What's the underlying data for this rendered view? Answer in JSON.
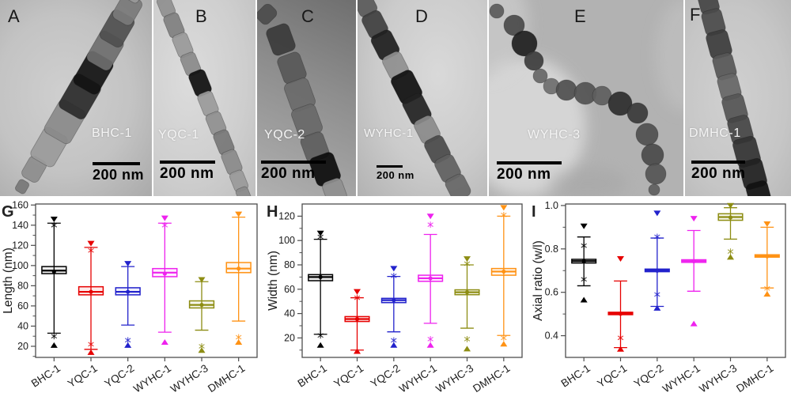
{
  "figure": {
    "tem_panels": [
      {
        "id": "A",
        "label": "A",
        "sample": "BHC-1",
        "scale_text": "200 nm"
      },
      {
        "id": "B",
        "label": "B",
        "sample": "YQC-1",
        "scale_text": "200 nm"
      },
      {
        "id": "C",
        "label": "C",
        "sample": "YQC-2",
        "scale_text": "200 nm"
      },
      {
        "id": "D",
        "label": "D",
        "sample": "WYHC-1",
        "scale_text": "200 nm"
      },
      {
        "id": "E",
        "label": "E",
        "sample": "WYHC-3",
        "scale_text": "200 nm"
      },
      {
        "id": "F",
        "label": "F",
        "sample": "DMHC-1",
        "scale_text": "200 nm"
      }
    ]
  },
  "chart_data": [
    {
      "type": "box",
      "panel": "G",
      "ylabel": "Length (nm)",
      "ylim": [
        9,
        161
      ],
      "yticks": [
        20,
        40,
        60,
        80,
        100,
        120,
        140,
        160
      ],
      "ytick_labels": [
        "20",
        "40",
        "60",
        "80",
        "100",
        "120",
        "140",
        "160"
      ],
      "categories": [
        "BHC-1",
        "YQC-1",
        "YQC-2",
        "WYHC-1",
        "WYHC-3",
        "DMHC-1"
      ],
      "series": [
        {
          "name": "BHC-1",
          "color": "#000000",
          "q1": 92,
          "median": 95,
          "q3": 99,
          "mean": 94,
          "whisker_low": 33,
          "whisker_high": 142,
          "max": 146,
          "p99": 140,
          "p1": 30,
          "min": 21
        },
        {
          "name": "YQC-1",
          "color": "#e60000",
          "q1": 71,
          "median": 74,
          "q3": 79,
          "mean": 74,
          "whisker_low": 17,
          "whisker_high": 118,
          "max": 122,
          "p99": 115,
          "p1": 22,
          "min": 14
        },
        {
          "name": "YQC-2",
          "color": "#2222cc",
          "q1": 71,
          "median": 74,
          "q3": 78,
          "mean": 74,
          "whisker_low": 41,
          "whisker_high": 99,
          "max": 102,
          "p99": null,
          "p1": 26,
          "min": 21
        },
        {
          "name": "WYHC-1",
          "color": "#ee22ee",
          "q1": 89,
          "median": 93,
          "q3": 97,
          "mean": 92,
          "whisker_low": 34,
          "whisker_high": 142,
          "max": 147,
          "p99": 140,
          "p1": null,
          "min": 24
        },
        {
          "name": "WYHC-3",
          "color": "#8d8d13",
          "q1": 58,
          "median": 61,
          "q3": 65,
          "mean": 61,
          "whisker_low": 36,
          "whisker_high": 84,
          "max": 86,
          "p99": null,
          "p1": 20,
          "min": 16
        },
        {
          "name": "DMHC-1",
          "color": "#ff9214",
          "q1": 93,
          "median": 97,
          "q3": 103,
          "mean": 97,
          "whisker_low": 45,
          "whisker_high": 148,
          "max": 151,
          "p99": null,
          "p1": 29,
          "min": 24
        }
      ]
    },
    {
      "type": "box",
      "panel": "H",
      "ylabel": "Width (nm)",
      "ylim": [
        4,
        130
      ],
      "yticks": [
        20,
        40,
        60,
        80,
        100,
        120
      ],
      "ytick_labels": [
        "20",
        "40",
        "60",
        "80",
        "100",
        "120"
      ],
      "categories": [
        "BHC-1",
        "YQC-1",
        "YQC-2",
        "WYHC-1",
        "WYHC-3",
        "DMHC-1"
      ],
      "series": [
        {
          "name": "BHC-1",
          "color": "#000000",
          "q1": 67,
          "median": 70,
          "q3": 72,
          "mean": 70,
          "whisker_low": 23,
          "whisker_high": 101,
          "max": 106,
          "p99": 103,
          "p1": 22,
          "min": 14
        },
        {
          "name": "YQC-1",
          "color": "#e60000",
          "q1": 33.5,
          "median": 35.5,
          "q3": 37.5,
          "mean": 35.5,
          "whisker_low": 10,
          "whisker_high": 53,
          "max": 58,
          "p99": 53,
          "p1": null,
          "min": 9
        },
        {
          "name": "YQC-2",
          "color": "#2222cc",
          "q1": 49,
          "median": 51,
          "q3": 52.5,
          "mean": 51,
          "whisker_low": 25,
          "whisker_high": 70.5,
          "max": 77,
          "p99": 71,
          "p1": 18,
          "min": 14
        },
        {
          "name": "WYHC-1",
          "color": "#ee22ee",
          "q1": 66.5,
          "median": 69,
          "q3": 71.5,
          "mean": 69,
          "whisker_low": 32,
          "whisker_high": 105,
          "max": 120,
          "p99": 113,
          "p1": 19,
          "min": 14
        },
        {
          "name": "WYHC-3",
          "color": "#8d8d13",
          "q1": 55.5,
          "median": 57.5,
          "q3": 59.5,
          "mean": 57.5,
          "whisker_low": 28,
          "whisker_high": 80,
          "max": 85,
          "p99": 81,
          "p1": 19,
          "min": 11
        },
        {
          "name": "DMHC-1",
          "color": "#ff9214",
          "q1": 71.5,
          "median": 74.5,
          "q3": 77,
          "mean": 74.5,
          "whisker_low": 22,
          "whisker_high": 120,
          "max": 127,
          "p99": 121,
          "p1": 20,
          "min": 15
        }
      ]
    },
    {
      "type": "box",
      "panel": "I",
      "ylabel": "Axial ratio (w/l)",
      "ylim": [
        0.3,
        1.007
      ],
      "yticks": [
        0.4,
        0.6,
        0.8,
        1.0
      ],
      "ytick_labels": [
        "0.4",
        "0.6",
        "0.8",
        "1.0"
      ],
      "categories": [
        "BHC-1",
        "YQC-1",
        "YQC-2",
        "WYHC-1",
        "WYHC-3",
        "DMHC-1"
      ],
      "series": [
        {
          "name": "BHC-1",
          "color": "#000000",
          "q1": 0.735,
          "median": 0.744,
          "q3": 0.752,
          "mean": 0.743,
          "whisker_low": 0.63,
          "whisker_high": 0.855,
          "max": 0.905,
          "p99": 0.815,
          "p1": 0.66,
          "min": 0.565
        },
        {
          "name": "YQC-1",
          "color": "#e60000",
          "q1": 0.497,
          "median": 0.502,
          "q3": 0.508,
          "mean": 0.501,
          "whisker_low": 0.345,
          "whisker_high": 0.652,
          "max": 0.755,
          "p99": null,
          "p1": 0.39,
          "min": 0.338
        },
        {
          "name": "YQC-2",
          "color": "#2222cc",
          "q1": 0.695,
          "median": 0.701,
          "q3": 0.707,
          "mean": 0.7,
          "whisker_low": 0.535,
          "whisker_high": 0.85,
          "max": 0.965,
          "p99": 0.856,
          "p1": 0.59,
          "min": 0.527
        },
        {
          "name": "WYHC-1",
          "color": "#ee22ee",
          "q1": 0.738,
          "median": 0.744,
          "q3": 0.75,
          "mean": 0.743,
          "whisker_low": 0.605,
          "whisker_high": 0.885,
          "max": 0.94,
          "p99": null,
          "p1": null,
          "min": 0.455
        },
        {
          "name": "WYHC-3",
          "color": "#8d8d13",
          "q1": 0.932,
          "median": 0.947,
          "q3": 0.962,
          "mean": 0.945,
          "whisker_low": 0.845,
          "whisker_high": 0.99,
          "max": 1.0,
          "p99": null,
          "p1": 0.788,
          "min": 0.762
        },
        {
          "name": "DMHC-1",
          "color": "#ff9214",
          "q1": 0.762,
          "median": 0.767,
          "q3": 0.773,
          "mean": 0.766,
          "whisker_low": 0.62,
          "whisker_high": 0.9,
          "max": 0.915,
          "p99": null,
          "p1": 0.618,
          "min": 0.592
        }
      ]
    }
  ]
}
